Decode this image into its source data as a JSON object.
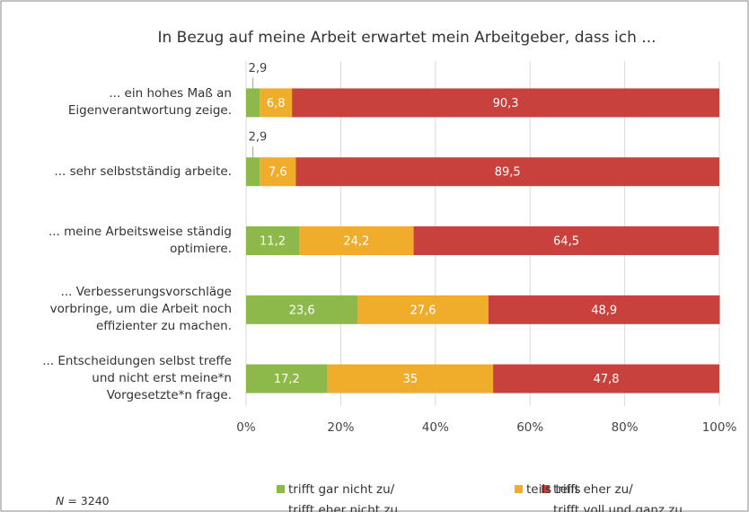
{
  "chart_data": {
    "type": "stacked-bar-horizontal",
    "title": "In Bezug auf meine Arbeit erwartet mein Arbeitgeber, dass ich ...",
    "categories": [
      "... ein hohes Maß an\nEigenverantwortung zeige.",
      "... sehr selbstständig arbeite.",
      "... meine Arbeitsweise ständig\noptimiere.",
      "... Verbesserungsvorschläge\nvorbringe, um die Arbeit noch\neffizienter zu machen.",
      "... Entscheidungen selbst treffe\nund nicht erst meine*n\nVorgesetzte*n frage."
    ],
    "series": [
      {
        "name": "trifft gar nicht zu/\ntrifft eher nicht zu",
        "color": "#8db84a",
        "values": [
          2.9,
          2.9,
          11.2,
          23.6,
          17.2
        ],
        "value_labels": [
          "2,9",
          "2,9",
          "11,2",
          "23,6",
          "17,2"
        ]
      },
      {
        "name": "teils teils",
        "color": "#f0ad2c",
        "values": [
          6.8,
          7.6,
          24.2,
          27.6,
          35
        ],
        "value_labels": [
          "6,8",
          "7,6",
          "24,2",
          "27,6",
          "35"
        ]
      },
      {
        "name": "trifft eher zu/\ntrifft voll und ganz zu",
        "color": "#c8413c",
        "values": [
          90.3,
          89.5,
          64.5,
          48.9,
          47.8
        ],
        "value_labels": [
          "90,3",
          "89,5",
          "64,5",
          "48,9",
          "47,8"
        ]
      }
    ],
    "xlim": [
      0,
      100
    ],
    "xticks": [
      {
        "value": 0,
        "label": "0%"
      },
      {
        "value": 20,
        "label": "20%"
      },
      {
        "value": 40,
        "label": "40%"
      },
      {
        "value": 60,
        "label": "60%"
      },
      {
        "value": 80,
        "label": "80%"
      },
      {
        "value": 100,
        "label": "100%"
      }
    ],
    "grid": true,
    "legend": "bottom",
    "note_symbol": "N",
    "note_text": "= 3240"
  }
}
